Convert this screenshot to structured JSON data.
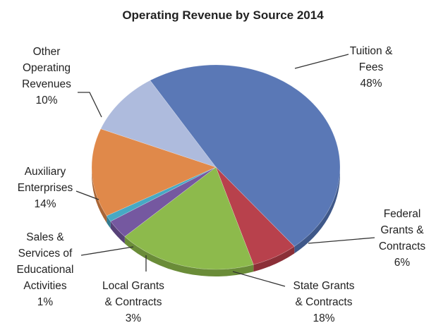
{
  "chart_data": {
    "type": "pie",
    "title": "Operating Revenue by Source 2014",
    "slices": [
      {
        "name": "Tuition & Fees",
        "value": 48,
        "label_lines": [
          "Tuition &",
          "Fees",
          "48%"
        ],
        "color": "#5a78b6",
        "side": "#3f5889"
      },
      {
        "name": "Federal Grants & Contracts",
        "value": 6,
        "label_lines": [
          "Federal",
          "Grants &",
          "Contracts",
          "6%"
        ],
        "color": "#b8414c",
        "side": "#8b2f37"
      },
      {
        "name": "State Grants & Contracts",
        "value": 18,
        "label_lines": [
          "State Grants",
          "& Contracts",
          "18%"
        ],
        "color": "#8dba4c",
        "side": "#6a8c38"
      },
      {
        "name": "Local Grants & Contracts",
        "value": 3,
        "label_lines": [
          "Local Grants",
          "& Contracts",
          "3%"
        ],
        "color": "#7558a0",
        "side": "#574178"
      },
      {
        "name": "Sales & Services of Educational Activities",
        "value": 1,
        "label_lines": [
          "Sales &",
          "Services of",
          "Educational",
          "Activities",
          "1%"
        ],
        "color": "#47a9c4",
        "side": "#347d91"
      },
      {
        "name": "Auxiliary Enterprises",
        "value": 14,
        "label_lines": [
          "Auxiliary",
          "Enterprises",
          "14%"
        ],
        "color": "#e0894a",
        "side": "#aa6535"
      },
      {
        "name": "Other Operating Revenues",
        "value": 10,
        "label_lines": [
          "Other",
          "Operating",
          "Revenues",
          "10%"
        ],
        "color": "#aebbdd",
        "side": "#8592b2"
      }
    ],
    "legend": "none",
    "units": "%"
  }
}
